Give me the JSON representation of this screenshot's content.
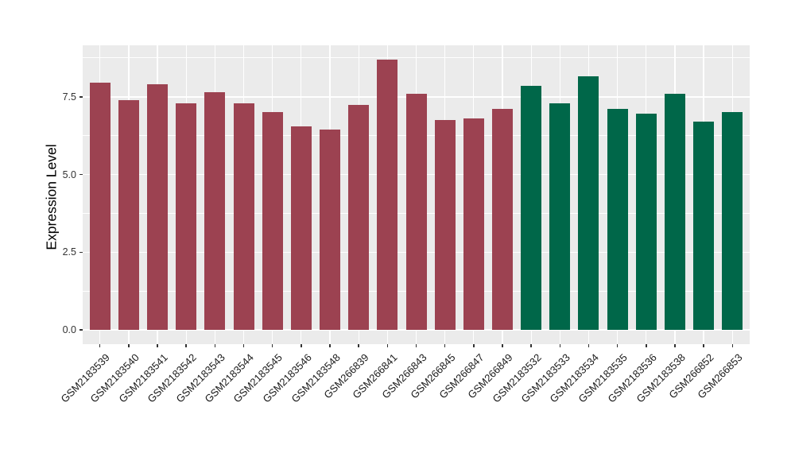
{
  "figure": {
    "background_color": "#ffffff",
    "panel_background_color": "#EBEBEB",
    "gridline_color": "#ffffff",
    "axis_text_color": "#333333"
  },
  "chart_data": {
    "type": "bar",
    "title": "",
    "xlabel": "",
    "ylabel": "Expression Level",
    "ylim": [
      0,
      9.2
    ],
    "yticks_values": [
      0,
      2.5,
      5,
      7.5
    ],
    "ytick_labels": [
      "0.0",
      "2.5",
      "5.0",
      "7.5"
    ],
    "yticks_minor": [
      1.25,
      3.75,
      6.25,
      8.75
    ],
    "grid": "major and minor horizontal white lines, one vertical white line per category",
    "legend_position": "none",
    "x_label_rotation_deg": 45,
    "categories": [
      "GSM2183539",
      "GSM2183540",
      "GSM2183541",
      "GSM2183542",
      "GSM2183543",
      "GSM2183544",
      "GSM2183545",
      "GSM2183546",
      "GSM2183548",
      "GSM266839",
      "GSM266841",
      "GSM266843",
      "GSM266845",
      "GSM266847",
      "GSM266849",
      "GSM2183532",
      "GSM2183533",
      "GSM2183534",
      "GSM2183535",
      "GSM2183536",
      "GSM2183538",
      "GSM266852",
      "GSM266853"
    ],
    "values": [
      7.95,
      7.4,
      7.9,
      7.3,
      7.65,
      7.3,
      7.0,
      6.55,
      6.45,
      7.25,
      8.7,
      7.6,
      6.75,
      6.8,
      7.1,
      7.85,
      7.3,
      8.15,
      7.1,
      6.95,
      7.6,
      6.7,
      7.0
    ],
    "groups": [
      "group1",
      "group1",
      "group1",
      "group1",
      "group1",
      "group1",
      "group1",
      "group1",
      "group1",
      "group1",
      "group1",
      "group1",
      "group1",
      "group1",
      "group1",
      "group2",
      "group2",
      "group2",
      "group2",
      "group2",
      "group2",
      "group2",
      "group2"
    ],
    "group_colors": {
      "group1": "#9C4251",
      "group2": "#006749"
    }
  }
}
